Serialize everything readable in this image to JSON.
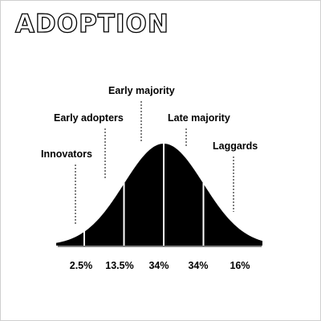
{
  "page": {
    "title": "ADOPTION"
  },
  "chart_data": {
    "type": "area",
    "title": "ADOPTION",
    "xlabel": "",
    "ylabel": "",
    "curve": "bell (normal distribution)",
    "categories": [
      "Innovators",
      "Early adopters",
      "Early majority",
      "Late majority",
      "Laggards"
    ],
    "percent_labels": [
      "2.5%",
      "13.5%",
      "34%",
      "34%",
      "16%"
    ],
    "values": [
      2.5,
      13.5,
      34,
      34,
      16
    ],
    "segment_boundaries_sd": [
      -2,
      -1,
      0,
      1
    ],
    "x_range_sd": [
      -3,
      3
    ],
    "grid": false,
    "legend": "none",
    "colors": {
      "fill": "#000000",
      "divider": "#ffffff",
      "text": "#000000",
      "background": "#ffffff"
    }
  }
}
